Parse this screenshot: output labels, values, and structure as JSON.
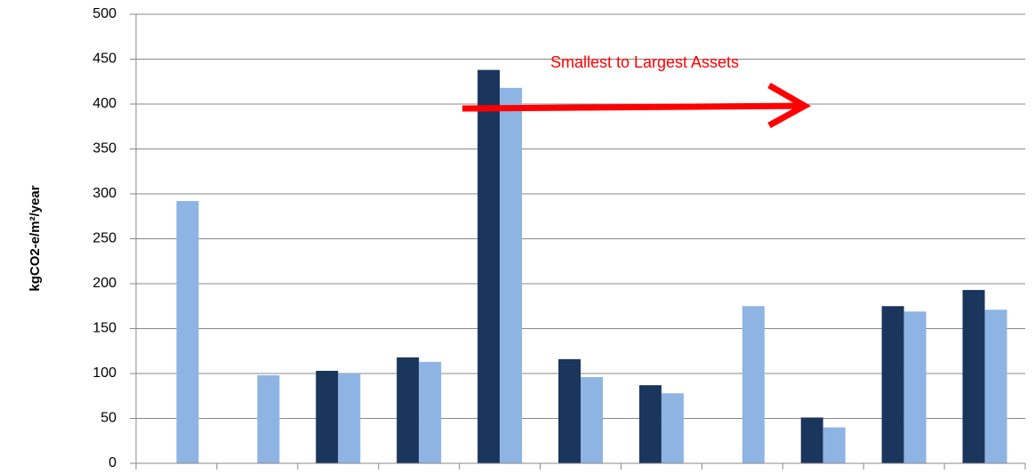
{
  "chart_data": {
    "type": "bar",
    "ylabel": "kgCO2-e/m²/year",
    "annotation": "Smallest to Largest Assets",
    "categories": [
      null,
      null,
      null,
      null,
      null,
      null,
      null,
      null,
      null,
      null,
      null
    ],
    "series": [
      {
        "color": "#1b365d",
        "values": [
          null,
          null,
          103,
          118,
          438,
          116,
          87,
          null,
          51,
          175,
          193
        ]
      },
      {
        "color": "#8eb4e3",
        "values": [
          292,
          98,
          100,
          113,
          418,
          96,
          78,
          175,
          40,
          169,
          171
        ]
      }
    ],
    "ylim": [
      0,
      500
    ],
    "yticks": [
      0,
      50,
      100,
      150,
      200,
      250,
      300,
      350,
      400,
      450,
      500
    ],
    "grid": true
  }
}
